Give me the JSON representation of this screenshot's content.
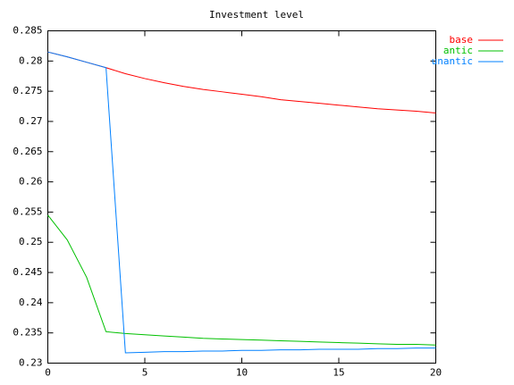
{
  "chart_data": {
    "type": "line",
    "title": "Investment level",
    "x": [
      0,
      1,
      2,
      3,
      4,
      5,
      6,
      7,
      8,
      9,
      10,
      11,
      12,
      13,
      14,
      15,
      16,
      17,
      18,
      19,
      20
    ],
    "series": [
      {
        "name": "base",
        "color": "#ff0000",
        "values": [
          0.2815,
          0.2807,
          0.2798,
          0.2789,
          0.2779,
          0.2771,
          0.2764,
          0.2758,
          0.2753,
          0.2749,
          0.2745,
          0.2741,
          0.2736,
          0.2733,
          0.273,
          0.2727,
          0.2724,
          0.2721,
          0.2719,
          0.2717,
          0.2714
        ]
      },
      {
        "name": "antic",
        "color": "#00c000",
        "values": [
          0.2545,
          0.2504,
          0.2442,
          0.2352,
          0.2349,
          0.2347,
          0.2345,
          0.2343,
          0.2341,
          0.234,
          0.2339,
          0.2338,
          0.2337,
          0.2336,
          0.2335,
          0.2334,
          0.2333,
          0.2332,
          0.2331,
          0.2331,
          0.233
        ]
      },
      {
        "name": "unantic",
        "color": "#0080ff",
        "values": [
          0.2815,
          0.2807,
          0.2798,
          0.2789,
          0.2317,
          0.2318,
          0.2319,
          0.2319,
          0.232,
          0.232,
          0.2321,
          0.2321,
          0.2322,
          0.2322,
          0.2323,
          0.2323,
          0.2323,
          0.2324,
          0.2324,
          0.2325,
          0.2325
        ]
      }
    ],
    "xlim": [
      0,
      20
    ],
    "xticks": [
      0,
      5,
      10,
      15,
      20
    ],
    "ylim": [
      0.23,
      0.285
    ],
    "yticks": [
      0.23,
      0.235,
      0.24,
      0.245,
      0.25,
      0.255,
      0.26,
      0.265,
      0.27,
      0.275,
      0.28,
      0.285
    ],
    "legend": "outside-top-right"
  }
}
